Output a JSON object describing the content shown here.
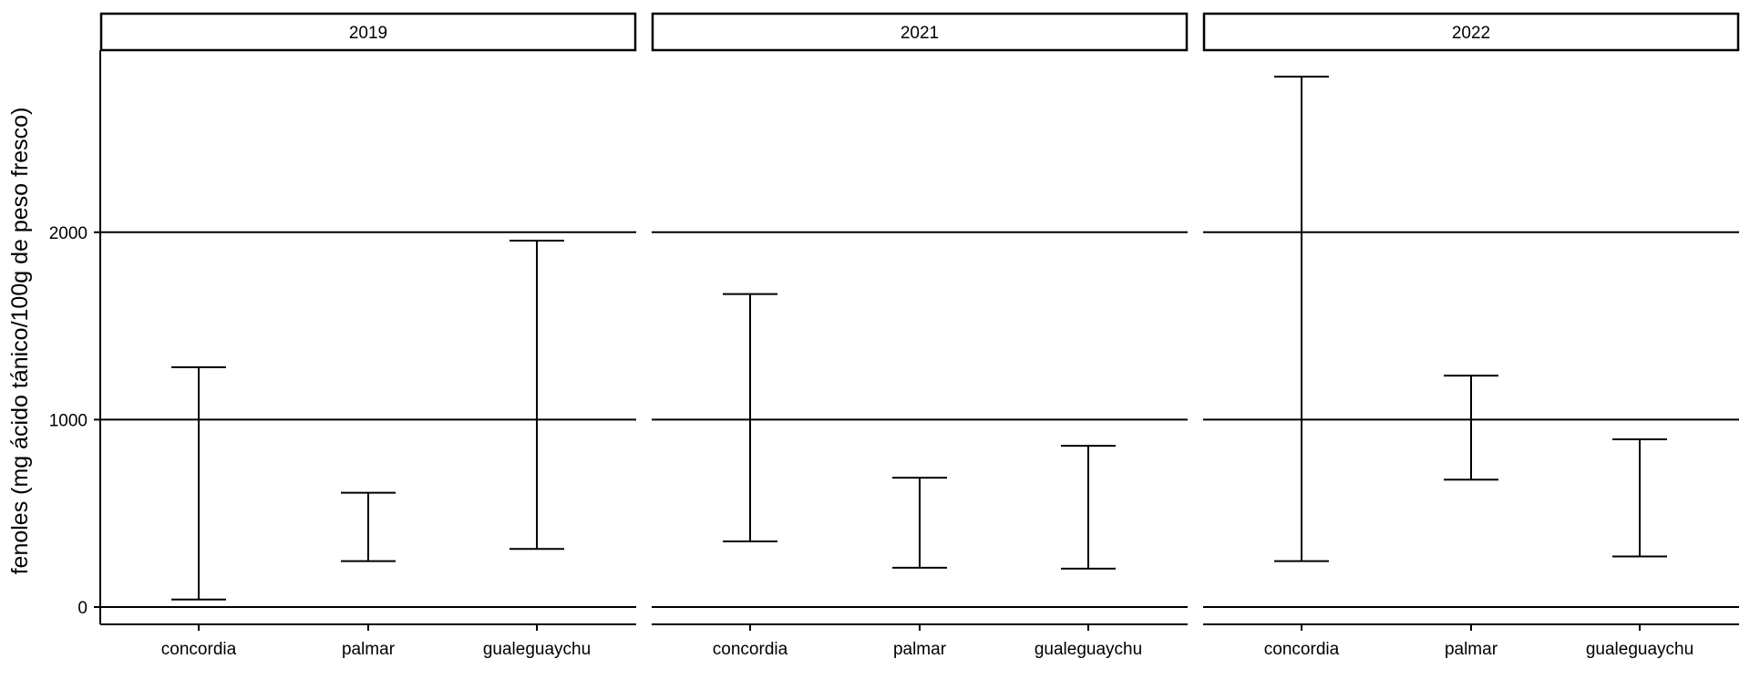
{
  "chart_data": {
    "type": "errorbar",
    "ylabel": "fenoles (mg ácido tánico/100g de peso fresco)",
    "xlabel": "",
    "categories": [
      "concordia",
      "palmar",
      "gualeguaychu"
    ],
    "yticks": [
      0,
      1000,
      2000
    ],
    "ylim": [
      -95,
      3000
    ],
    "grid": "horizontal major",
    "panels": [
      {
        "title": "2019",
        "bars": [
          {
            "category": "concordia",
            "low": 40,
            "high": 1280
          },
          {
            "category": "palmar",
            "low": 245,
            "high": 610
          },
          {
            "category": "gualeguaychu",
            "low": 310,
            "high": 1955
          }
        ]
      },
      {
        "title": "2021",
        "bars": [
          {
            "category": "concordia",
            "low": 350,
            "high": 1670
          },
          {
            "category": "palmar",
            "low": 210,
            "high": 690
          },
          {
            "category": "gualeguaychu",
            "low": 205,
            "high": 860
          }
        ]
      },
      {
        "title": "2022",
        "bars": [
          {
            "category": "concordia",
            "low": 245,
            "high": 2830
          },
          {
            "category": "palmar",
            "low": 680,
            "high": 1235
          },
          {
            "category": "gualeguaychu",
            "low": 270,
            "high": 895
          }
        ]
      }
    ]
  }
}
